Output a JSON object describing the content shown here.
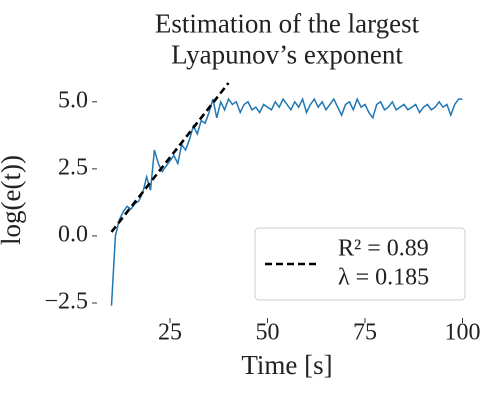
{
  "chart_data": {
    "type": "line",
    "title": "Estimation of the largest\nLyapunov’s exponent",
    "xlabel": "Time [s]",
    "ylabel": "log(e(t))",
    "xlim": [
      8,
      102
    ],
    "ylim": [
      -3,
      5.7
    ],
    "xticks": [
      25,
      50,
      75,
      100
    ],
    "yticks": [
      {
        "value": -2.5,
        "label": "−2.5"
      },
      {
        "value": 0,
        "label": "0.0"
      },
      {
        "value": 2.5,
        "label": "2.5"
      },
      {
        "value": 5,
        "label": "5.0"
      }
    ],
    "grid": false,
    "legend": "lower right",
    "series": [
      {
        "color": "#1f77b4",
        "dash": false,
        "x": [
          10,
          11,
          12,
          13,
          14,
          15,
          16,
          17,
          18,
          19,
          20,
          21,
          22,
          23,
          24,
          25,
          26,
          27,
          28,
          29,
          30,
          31,
          32,
          33,
          34,
          35,
          36,
          37,
          38,
          39,
          40,
          41,
          42,
          43,
          44,
          45,
          46,
          47,
          48,
          49,
          50,
          51,
          52,
          53,
          54,
          55,
          56,
          57,
          58,
          59,
          60,
          61,
          62,
          63,
          64,
          65,
          66,
          67,
          68,
          69,
          70,
          71,
          72,
          73,
          74,
          75,
          76,
          77,
          78,
          79,
          80,
          81,
          82,
          83,
          84,
          85,
          86,
          87,
          88,
          89,
          90,
          91,
          92,
          93,
          94,
          95,
          96,
          97,
          98,
          99,
          100
        ],
        "values": [
          -2.6,
          0.0,
          0.6,
          0.9,
          1.1,
          1.0,
          1.2,
          1.3,
          1.6,
          2.2,
          1.7,
          3.2,
          2.7,
          2.4,
          2.6,
          2.8,
          3.0,
          2.7,
          3.4,
          3.2,
          3.6,
          4.1,
          3.8,
          4.3,
          4.2,
          4.6,
          5.1,
          4.4,
          5.0,
          4.7,
          5.1,
          4.9,
          5.0,
          4.6,
          4.9,
          5.0,
          4.7,
          4.8,
          4.6,
          4.9,
          4.8,
          4.7,
          5.0,
          4.8,
          5.1,
          4.9,
          4.7,
          5.0,
          4.8,
          5.1,
          4.6,
          4.9,
          5.1,
          4.8,
          5.0,
          4.7,
          4.9,
          5.1,
          4.8,
          4.5,
          4.9,
          5.0,
          4.7,
          5.1,
          4.8,
          4.9,
          4.6,
          4.4,
          4.9,
          5.0,
          4.7,
          4.8,
          5.0,
          4.7,
          4.8,
          4.9,
          4.7,
          4.8,
          4.9,
          4.6,
          4.8,
          4.9,
          4.7,
          4.8,
          5.0,
          4.8,
          4.9,
          4.5,
          4.9,
          5.1,
          5.1
        ]
      },
      {
        "name": "R² = 0.89\nλ = 0.185",
        "color": "#000000",
        "dash": true,
        "x": [
          10,
          40
        ],
        "values": [
          0.15,
          5.7
        ]
      }
    ]
  }
}
